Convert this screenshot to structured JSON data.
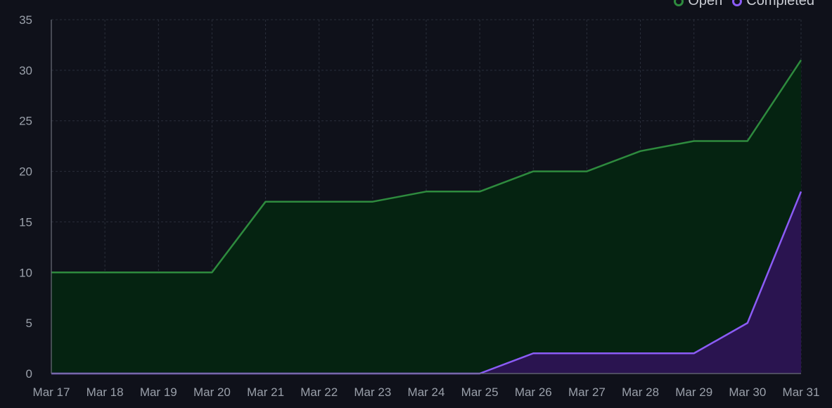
{
  "chart_data": {
    "type": "area",
    "title": "",
    "xlabel": "",
    "ylabel": "",
    "categories": [
      "Mar 17",
      "Mar 18",
      "Mar 19",
      "Mar 20",
      "Mar 21",
      "Mar 22",
      "Mar 23",
      "Mar 24",
      "Mar 25",
      "Mar 26",
      "Mar 27",
      "Mar 28",
      "Mar 29",
      "Mar 30",
      "Mar 31"
    ],
    "ylim": [
      0,
      35
    ],
    "yticks": [
      0,
      5,
      10,
      15,
      20,
      25,
      30,
      35
    ],
    "grid": true,
    "legend_position": "top-right",
    "series": [
      {
        "name": "Open",
        "color": "#2e8b3e",
        "fill": "#052311",
        "values": [
          10,
          10,
          10,
          10,
          17,
          17,
          17,
          18,
          18,
          20,
          20,
          22,
          23,
          23,
          31
        ]
      },
      {
        "name": "Completed",
        "color": "#8b5cf6",
        "fill": "#2a1450",
        "values": [
          0,
          0,
          0,
          0,
          0,
          0,
          0,
          0,
          0,
          2,
          2,
          2,
          2,
          5,
          18
        ]
      }
    ]
  }
}
